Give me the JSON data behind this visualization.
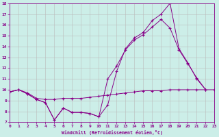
{
  "xlabel": "Windchill (Refroidissement éolien,°C)",
  "bg_color": "#cceee8",
  "line_color": "#880088",
  "grid_color": "#bbbbbb",
  "xmin": 0,
  "xmax": 23,
  "ymin": 7,
  "ymax": 18,
  "line1_x": [
    0,
    1,
    2,
    3,
    4,
    5,
    6,
    7,
    8,
    9,
    10,
    11,
    12,
    13,
    14,
    15,
    16,
    17,
    18,
    19,
    20,
    21,
    22,
    23
  ],
  "line1_y": [
    9.8,
    10.0,
    9.7,
    9.2,
    9.1,
    9.1,
    9.2,
    9.2,
    9.2,
    9.3,
    9.4,
    9.5,
    9.6,
    9.7,
    9.8,
    9.9,
    9.9,
    9.9,
    10.0,
    10.0,
    10.0,
    10.0,
    10.0,
    10.0
  ],
  "line2_x": [
    0,
    1,
    2,
    3,
    4,
    5,
    6,
    7,
    8,
    9,
    10,
    11,
    12,
    13,
    14,
    15,
    16,
    17,
    18,
    19,
    20,
    21,
    22
  ],
  "line2_y": [
    9.8,
    10.0,
    9.6,
    9.1,
    8.8,
    7.2,
    8.3,
    7.9,
    7.9,
    7.8,
    7.5,
    8.6,
    11.7,
    13.8,
    14.8,
    15.3,
    16.4,
    17.0,
    18.0,
    13.8,
    12.5,
    11.0,
    10.0
  ],
  "line3_x": [
    0,
    1,
    2,
    3,
    4,
    5,
    6,
    7,
    8,
    9,
    10,
    11,
    12,
    13,
    14,
    15,
    16,
    17,
    18,
    19,
    20,
    21,
    22
  ],
  "line3_y": [
    9.8,
    10.0,
    9.6,
    9.1,
    8.8,
    7.2,
    8.3,
    7.9,
    7.9,
    7.8,
    7.5,
    11.0,
    12.2,
    13.7,
    14.6,
    15.1,
    15.8,
    16.5,
    15.7,
    13.7,
    12.4,
    11.1,
    10.0
  ]
}
